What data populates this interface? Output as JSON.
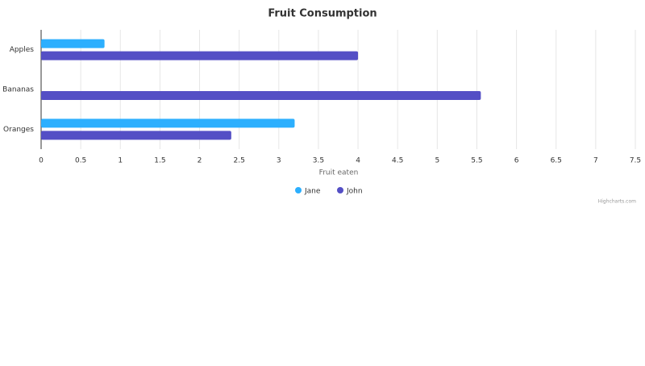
{
  "chart_data": {
    "type": "bar",
    "title": "Fruit Consumption",
    "categories": [
      "Apples",
      "Bananas",
      "Oranges"
    ],
    "series": [
      {
        "name": "Jane",
        "color": "#2caffe",
        "values": [
          0.8,
          0,
          3.2
        ]
      },
      {
        "name": "John",
        "color": "#544fc5",
        "values": [
          4,
          5.55,
          2.4
        ]
      }
    ],
    "xlabel": "Fruit eaten",
    "xlim": [
      0,
      7.5
    ],
    "xticks": [
      0,
      0.5,
      1,
      1.5,
      2,
      2.5,
      3,
      3.5,
      4,
      4.5,
      5,
      5.5,
      6,
      6.5,
      7,
      7.5
    ],
    "grid": true,
    "legend": "bottom",
    "credits": "Highcharts.com"
  }
}
